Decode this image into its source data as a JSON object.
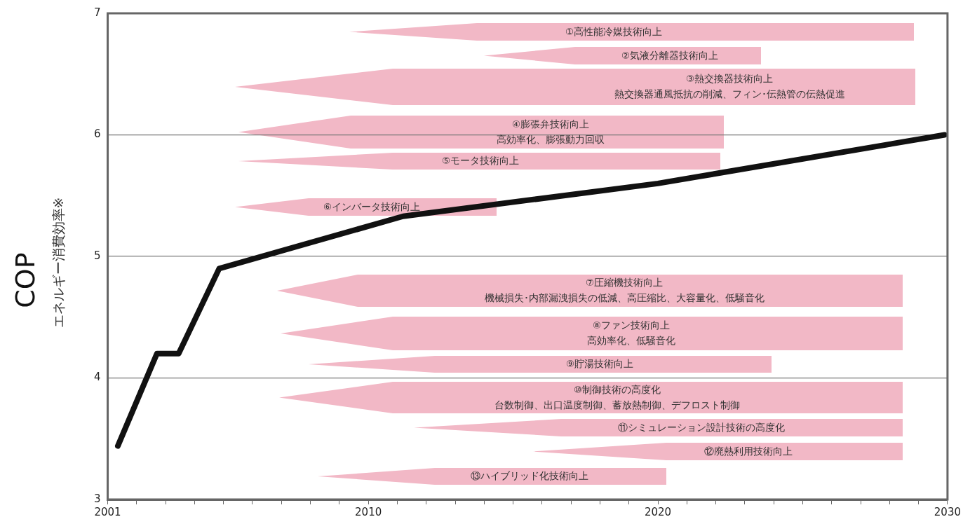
{
  "chart_data": {
    "type": "line",
    "ylabel": "COP",
    "subtitle": "エネルギー消費効率※",
    "x": [
      2001.35,
      2002.7,
      2003.45,
      2004.85,
      2011.2,
      2020,
      2029.9
    ],
    "series": [
      {
        "color": "#111111",
        "values": [
          3.44,
          4.2,
          4.2,
          4.9,
          5.33,
          5.6,
          6.0
        ]
      }
    ],
    "xlim": [
      2001,
      2030
    ],
    "xticks": [
      2001,
      {
        "value": 2002,
        "label": null
      },
      {
        "value": 2003,
        "label": null
      },
      {
        "value": 2004,
        "label": null
      },
      {
        "value": 2005,
        "label": null
      },
      {
        "value": 2006,
        "label": null
      },
      {
        "value": 2007,
        "label": null
      },
      {
        "value": 2008,
        "label": null
      },
      {
        "value": 2009,
        "label": null
      },
      2010,
      {
        "value": 2011,
        "label": null
      },
      {
        "value": 2012,
        "label": null
      },
      {
        "value": 2013,
        "label": null
      },
      {
        "value": 2014,
        "label": null
      },
      {
        "value": 2015,
        "label": null
      },
      {
        "value": 2016,
        "label": null
      },
      {
        "value": 2017,
        "label": null
      },
      {
        "value": 2018,
        "label": null
      },
      {
        "value": 2019,
        "label": null
      },
      2020,
      {
        "value": 2021,
        "label": null
      },
      {
        "value": 2022,
        "label": null
      },
      {
        "value": 2023,
        "label": null
      },
      {
        "value": 2024,
        "label": null
      },
      {
        "value": 2025,
        "label": null
      },
      {
        "value": 2026,
        "label": null
      },
      {
        "value": 2027,
        "label": null
      },
      {
        "value": 2028,
        "label": null
      },
      {
        "value": 2029,
        "label": null
      },
      2030
    ],
    "ylim": [
      3,
      7
    ],
    "yticks": [
      3,
      4,
      5,
      6,
      7
    ],
    "grid": "y",
    "legend": false,
    "marker": "none",
    "line_style": "solid",
    "annotations": [
      "①高性能冷媒技術向上",
      "②気液分離器技術向上",
      "③熱交換器技術向上",
      "熱交換器通風抵抗の削減、フィン･伝熱管の伝熱促進",
      "④膨張弁技術向上",
      "高効率化、膨張動力回収",
      "⑤モータ技術向上",
      "⑥インバータ技術向上",
      "⑦圧縮機技術向上",
      "機械損失･内部漏洩損失の低減、高圧縮比、大容量化、低騒音化",
      "⑧ファン技術向上",
      "高効率化、低騒音化",
      "⑨貯湯技術向上",
      "⑩制御技術の高度化",
      "台数制御、出口温度制御、蓄放熱制御、デフロスト制御",
      "⑪シミュレーション設計技術の高度化",
      "⑫廃熱利用技術向上",
      "⑬ハイブリッド化技術向上"
    ]
  }
}
